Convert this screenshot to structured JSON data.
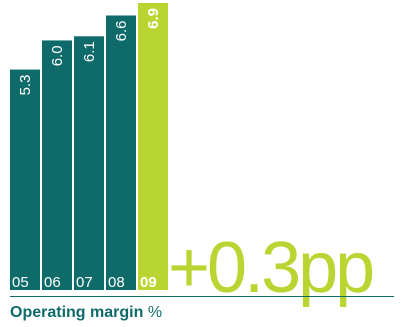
{
  "chart_data": {
    "type": "bar",
    "categories": [
      "05",
      "06",
      "07",
      "08",
      "09"
    ],
    "values": [
      5.3,
      6.0,
      6.1,
      6.6,
      6.9
    ],
    "value_labels": [
      "5.3",
      "6.0",
      "6.1",
      "6.6",
      "6.9"
    ],
    "highlight_index": 4,
    "title": "Operating margin",
    "unit": "%",
    "headline": "+0.3pp",
    "ylim": [
      0,
      6.9
    ],
    "colors": {
      "bar": "#0f6b6a",
      "highlight": "#b9d531",
      "text_on_bar": "#ffffff",
      "axis": "#0f6b6a"
    }
  }
}
